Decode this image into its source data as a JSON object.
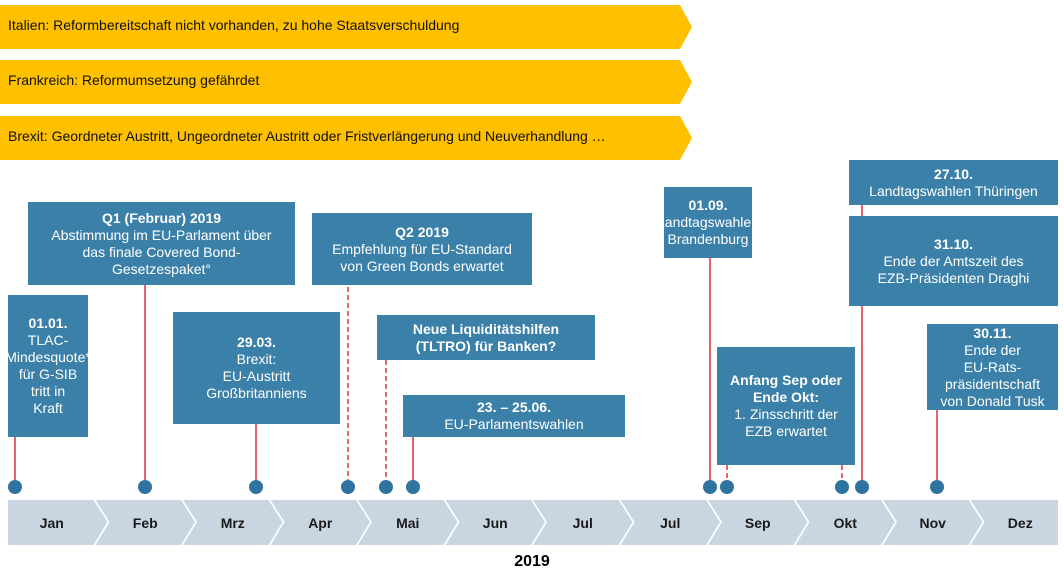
{
  "banners": [
    "Italien: Reformbereitschaft nicht vorhanden, zu  hohe Staatsverschuldung",
    "Frankreich: Reformumsetzung  gefährdet",
    "Brexit: Geordneter Austritt, Ungeordneter Austritt oder Fristverlängerung und Neuverhandlung …"
  ],
  "events": [
    {
      "title": [
        "01.01."
      ],
      "text": [
        "TLAC-",
        "Mindesquote*",
        "für G-SIB tritt in",
        "Kraft"
      ]
    },
    {
      "title": [
        "Q1 (Februar) 2019"
      ],
      "text": [
        "Abstimmung  im EU-Parlament über",
        "das finale Covered Bond-",
        "Gesetzespaket°"
      ]
    },
    {
      "title": [
        "29.03."
      ],
      "text": [
        "Brexit:",
        "EU-Austritt",
        "Großbritanniens"
      ]
    },
    {
      "title": [
        "Q2 2019"
      ],
      "text": [
        "Empfehlung für EU-Standard",
        "von Green Bonds erwartet"
      ]
    },
    {
      "title": [
        "Neue Liquiditätshilfen",
        "(TLTRO) für Banken?"
      ],
      "text": []
    },
    {
      "title": [
        "23. – 25.06."
      ],
      "text": [
        "EU-Parlamentswahlen"
      ]
    },
    {
      "title": [
        "01.09."
      ],
      "text": [
        "Landtagswahlen",
        "Brandenburg"
      ]
    },
    {
      "title": [
        "Anfang Sep oder",
        "Ende Okt:"
      ],
      "text": [
        "1. Zinsschritt der",
        "EZB erwartet"
      ]
    },
    {
      "title": [
        "27.10."
      ],
      "text": [
        "Landtagswahlen Thüringen"
      ]
    },
    {
      "title": [
        "31.10."
      ],
      "text": [
        "Ende der Amtszeit des",
        "EZB-Präsidenten Draghi"
      ]
    },
    {
      "title": [
        "30.11."
      ],
      "text": [
        "Ende der",
        "EU-Rats-",
        "präsidentschaft",
        "von Donald Tusk"
      ]
    }
  ],
  "months": [
    "Jan",
    "Feb",
    "Mrz",
    "Apr",
    "Mai",
    "Jun",
    "Jul",
    "Jul",
    "Sep",
    "Okt",
    "Nov",
    "Dez"
  ],
  "year": "2019"
}
